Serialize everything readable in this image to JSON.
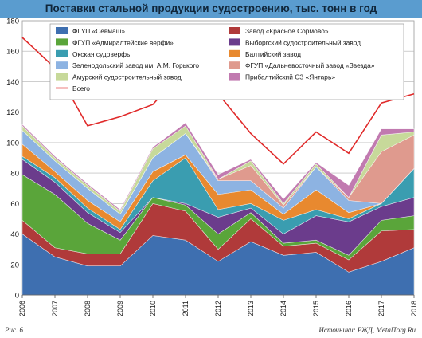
{
  "header": {
    "title": "Поставки стальной продукции судостроению, тыс. тонн в год"
  },
  "footer": {
    "fig_label": "Рис. 6",
    "source": "Источники: РЖД, MetalTorg.Ru"
  },
  "chart_data": {
    "type": "area",
    "stacked": true,
    "title": "Поставки стальной продукции судостроению, тыс. тонн в год",
    "categories": [
      "2006",
      "2007",
      "2008",
      "2009",
      "2010",
      "2011",
      "2012",
      "2013",
      "2014",
      "2015",
      "2016",
      "2017",
      "2018"
    ],
    "ylim": [
      0,
      180
    ],
    "yticks": [
      0,
      20,
      40,
      60,
      80,
      100,
      120,
      140,
      160,
      180
    ],
    "grid": true,
    "legend_position": "top",
    "series": [
      {
        "name": "ФГУП «Севмаш»",
        "color": "#3e6fb0",
        "values": [
          40,
          25,
          19,
          19,
          39,
          36,
          22,
          35,
          26,
          28,
          15,
          22,
          31
        ]
      },
      {
        "name": "Завод «Красное Сормово»",
        "color": "#b03a3a",
        "values": [
          9,
          6,
          8,
          8,
          21,
          19,
          8,
          15,
          6,
          6,
          8,
          20,
          12
        ]
      },
      {
        "name": "ФГУП «Адмиралтейские верфи»",
        "color": "#5aa53a",
        "values": [
          30,
          35,
          20,
          9,
          4,
          4,
          10,
          4,
          2,
          2,
          3,
          7,
          9
        ]
      },
      {
        "name": "Выборгский судостроительный завод",
        "color": "#6b3c8c",
        "values": [
          10,
          8,
          7,
          5,
          0,
          1,
          11,
          3,
          6,
          16,
          22,
          9,
          12
        ]
      },
      {
        "name": "Окская судоверфь",
        "color": "#3a9db0",
        "values": [
          2,
          3,
          3,
          2,
          11,
          30,
          5,
          3,
          9,
          4,
          2,
          2,
          19
        ]
      },
      {
        "name": "Балтийский завод",
        "color": "#e8892f",
        "values": [
          8,
          4,
          5,
          5,
          6,
          2,
          10,
          9,
          4,
          13,
          4,
          0,
          0
        ]
      },
      {
        "name": "Зеленодольский завод им. А.М. Горького",
        "color": "#8db3e2",
        "values": [
          9,
          7,
          8,
          5,
          9,
          14,
          9,
          6,
          4,
          15,
          8,
          0,
          0
        ]
      },
      {
        "name": "ФГУП «Дальневосточный завод «Звезда»",
        "color": "#df9a8e",
        "values": [
          0,
          0,
          0,
          0,
          0,
          0,
          1,
          10,
          2,
          0,
          2,
          34,
          22
        ]
      },
      {
        "name": "Амурский судостроительный завод",
        "color": "#c7d99a",
        "values": [
          3,
          2,
          2,
          2,
          6,
          5,
          0,
          3,
          1,
          2,
          0,
          11,
          2
        ]
      },
      {
        "name": "Прибалтийский СЗ «Янтарь»",
        "color": "#c17ab0",
        "values": [
          1,
          1,
          1,
          1,
          1,
          2,
          3,
          1,
          3,
          1,
          8,
          4,
          2
        ]
      }
    ],
    "total": {
      "name": "Всего",
      "color": "#e02a2a",
      "values": [
        169,
        149,
        111,
        117,
        125,
        149,
        132,
        106,
        86,
        107,
        93,
        126,
        132
      ]
    }
  }
}
